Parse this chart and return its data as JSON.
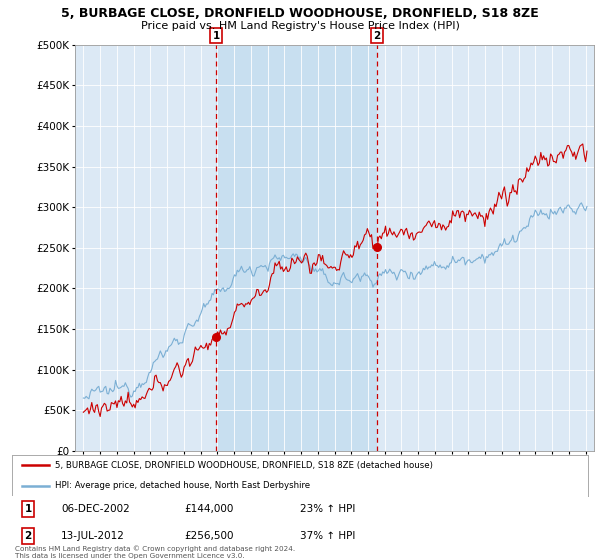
{
  "title": "5, BURBAGE CLOSE, DRONFIELD WOODHOUSE, DRONFIELD, S18 8ZE",
  "subtitle": "Price paid vs. HM Land Registry's House Price Index (HPI)",
  "hpi_label": "HPI: Average price, detached house, North East Derbyshire",
  "property_label": "5, BURBAGE CLOSE, DRONFIELD WOODHOUSE, DRONFIELD, S18 8ZE (detached house)",
  "sale1_date": "06-DEC-2002",
  "sale1_price": 144000,
  "sale1_pct": "23% ↑ HPI",
  "sale1_year": 2002.92,
  "sale2_date": "13-JUL-2012",
  "sale2_price": 256500,
  "sale2_pct": "37% ↑ HPI",
  "sale2_year": 2012.54,
  "plot_background": "#dce9f5",
  "highlight_background": "#c8dff0",
  "red_color": "#cc0000",
  "blue_color": "#7bafd4",
  "ymin": 0,
  "ymax": 500000,
  "xmin": 1994.5,
  "xmax": 2025.5,
  "copyright": "Contains HM Land Registry data © Crown copyright and database right 2024.\nThis data is licensed under the Open Government Licence v3.0."
}
